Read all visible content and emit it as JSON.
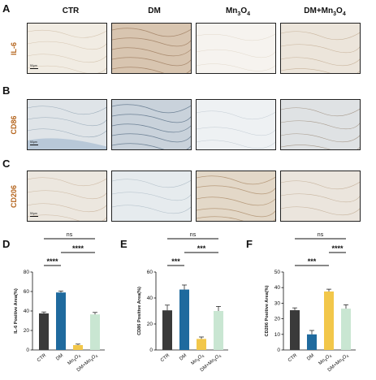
{
  "columns": [
    "CTR",
    "DM",
    "Mn3O4",
    "DM+Mn3O4"
  ],
  "micro_rows": [
    {
      "letter": "A",
      "stain": "IL-6",
      "scale": "50μm"
    },
    {
      "letter": "B",
      "stain": "CD86",
      "scale": "50μm"
    },
    {
      "letter": "C",
      "stain": "CD206",
      "scale": "50μm"
    }
  ],
  "colors": {
    "CTR": "#3a3a3a",
    "DM": "#1f6a9e",
    "Mn3O4": "#f2c74a",
    "DM+Mn3O4": "#c9e6d2",
    "stain_label": "#b5651d"
  },
  "chart_data": [
    {
      "letter": "D",
      "type": "bar",
      "categories": [
        "CTR",
        "DM",
        "Mn3O4",
        "DM+Mn3O4"
      ],
      "values": [
        37.5,
        59,
        5,
        36.5
      ],
      "errors": [
        1.5,
        1.5,
        1,
        2
      ],
      "ylabel": "IL-6 Positive Area(%)",
      "ylim": [
        0,
        80
      ],
      "yticks": [
        0,
        20,
        40,
        60,
        80
      ],
      "significance": [
        {
          "from": 0,
          "to": 3,
          "label": "ns"
        },
        {
          "from": 1,
          "to": 3,
          "label": "****"
        },
        {
          "from": 0,
          "to": 1,
          "label": "****"
        }
      ]
    },
    {
      "letter": "E",
      "type": "bar",
      "categories": [
        "CTR",
        "DM",
        "Mn3O4",
        "DM+Mn3O4"
      ],
      "values": [
        30.5,
        46.5,
        8.5,
        30
      ],
      "errors": [
        4,
        3.5,
        1.5,
        3.5
      ],
      "ylabel": "CD86 Positive Area(%)",
      "ylim": [
        0,
        60
      ],
      "yticks": [
        0,
        20,
        40,
        60
      ],
      "significance": [
        {
          "from": 0,
          "to": 3,
          "label": "ns"
        },
        {
          "from": 1,
          "to": 3,
          "label": "***"
        },
        {
          "from": 0,
          "to": 1,
          "label": "***"
        }
      ]
    },
    {
      "letter": "F",
      "type": "bar",
      "categories": [
        "CTR",
        "DM",
        "Mn3O4",
        "DM+Mn3O4"
      ],
      "values": [
        25.5,
        10,
        37.5,
        26.5
      ],
      "errors": [
        1.5,
        2.5,
        1.5,
        2.5
      ],
      "ylabel": "CD206 Positive Area(%)",
      "ylim": [
        0,
        50
      ],
      "yticks": [
        0,
        10,
        20,
        30,
        40,
        50
      ],
      "significance": [
        {
          "from": 0,
          "to": 3,
          "label": "ns"
        },
        {
          "from": 2,
          "to": 3,
          "label": "****"
        },
        {
          "from": 0,
          "to": 2,
          "label": "***"
        }
      ]
    }
  ]
}
